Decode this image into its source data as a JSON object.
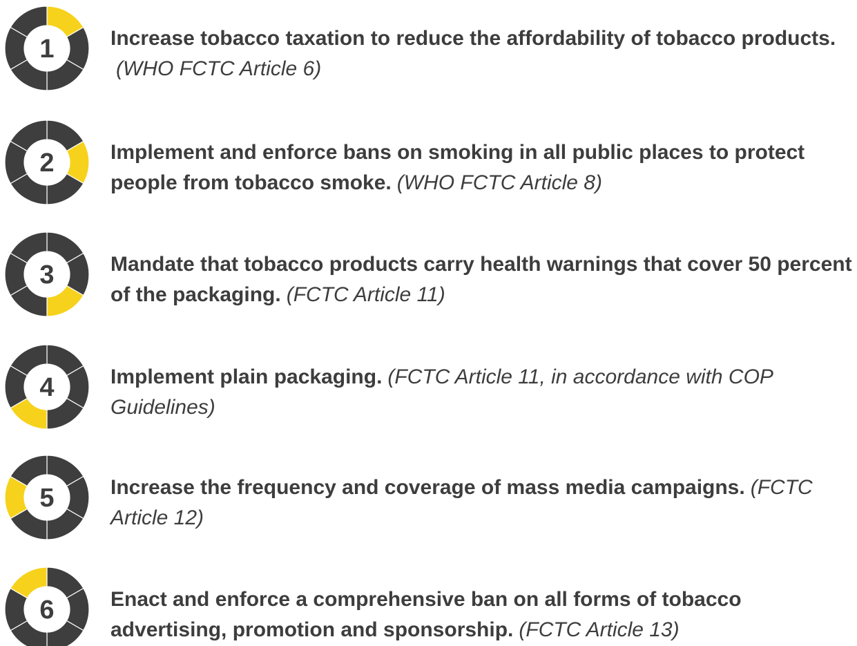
{
  "items": [
    {
      "number": "1",
      "text": "Increase tobacco taxation to reduce the affordability of tobacco products.",
      "reference": "(WHO FCTC Article 6)"
    },
    {
      "number": "2",
      "text": "Implement and enforce bans on smoking in all public places to protect people from tobacco smoke.",
      "reference": "(WHO FCTC Article 8)"
    },
    {
      "number": "3",
      "text": "Mandate that tobacco products carry health warnings that cover 50 percent of the packaging.",
      "reference": "(FCTC Article 11)"
    },
    {
      "number": "4",
      "text": "Implement plain packaging.",
      "reference": "(FCTC Article 11, in accordance with COP Guidelines)"
    },
    {
      "number": "5",
      "text": "Increase the frequency and coverage of mass media campaigns.",
      "reference": "(FCTC Article 12)"
    },
    {
      "number": "6",
      "text": "Enact and enforce a comprehensive ban on all forms of tobacco advertising, promotion and sponsorship.",
      "reference": "(FCTC Article 13)"
    }
  ]
}
